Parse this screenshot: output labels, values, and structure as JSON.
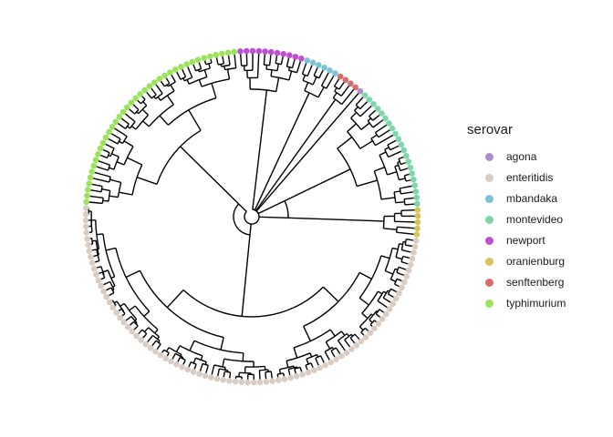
{
  "legend": {
    "title": "serovar",
    "entries": [
      {
        "label": "agona",
        "color": "#a98fd0"
      },
      {
        "label": "enteritidis",
        "color": "#d9ccc2"
      },
      {
        "label": "mbandaka",
        "color": "#7dc3d6"
      },
      {
        "label": "montevideo",
        "color": "#7fd6a8"
      },
      {
        "label": "newport",
        "color": "#be4fd4"
      },
      {
        "label": "oranienburg",
        "color": "#d9c45c"
      },
      {
        "label": "senftenberg",
        "color": "#d66d6d"
      },
      {
        "label": "typhimurium",
        "color": "#9be35a"
      }
    ]
  },
  "tree": {
    "layout": "circular",
    "tip_groups": [
      {
        "serovar": "newport",
        "color": "#be4fd4",
        "count": 11
      },
      {
        "serovar": "mbandaka",
        "color": "#7dc3d6",
        "count": 6
      },
      {
        "serovar": "senftenberg",
        "color": "#d66d6d",
        "count": 4
      },
      {
        "serovar": "agona",
        "color": "#a98fd0",
        "count": 1
      },
      {
        "serovar": "montevideo",
        "color": "#7fd6a8",
        "count": 21
      },
      {
        "serovar": "oranienburg",
        "color": "#d9c45c",
        "count": 5
      },
      {
        "serovar": "enteritidis",
        "color": "#d9ccc2",
        "count": 83
      },
      {
        "serovar": "typhimurium",
        "color": "#9be35a",
        "count": 38
      }
    ]
  }
}
